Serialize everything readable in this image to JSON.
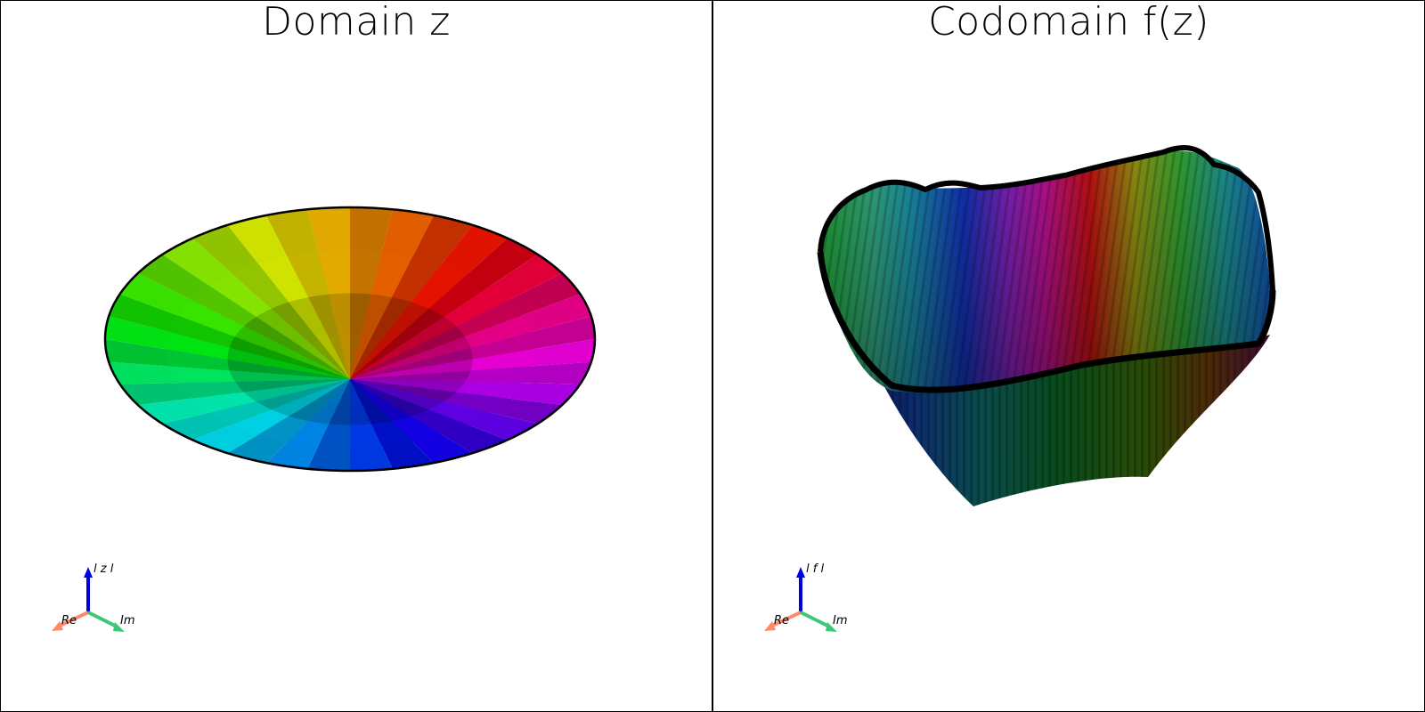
{
  "panels": [
    {
      "title": "Domain z",
      "axes": {
        "up": "l z l",
        "x": "Re",
        "y": "Im"
      }
    },
    {
      "title": "Codomain f(z)",
      "axes": {
        "up": "l f l",
        "x": "Re",
        "y": "Im"
      }
    }
  ],
  "colors": {
    "up_axis": "#0000dd",
    "x_axis": "#ff8a65",
    "y_axis": "#3cc878",
    "border": "#000000"
  }
}
